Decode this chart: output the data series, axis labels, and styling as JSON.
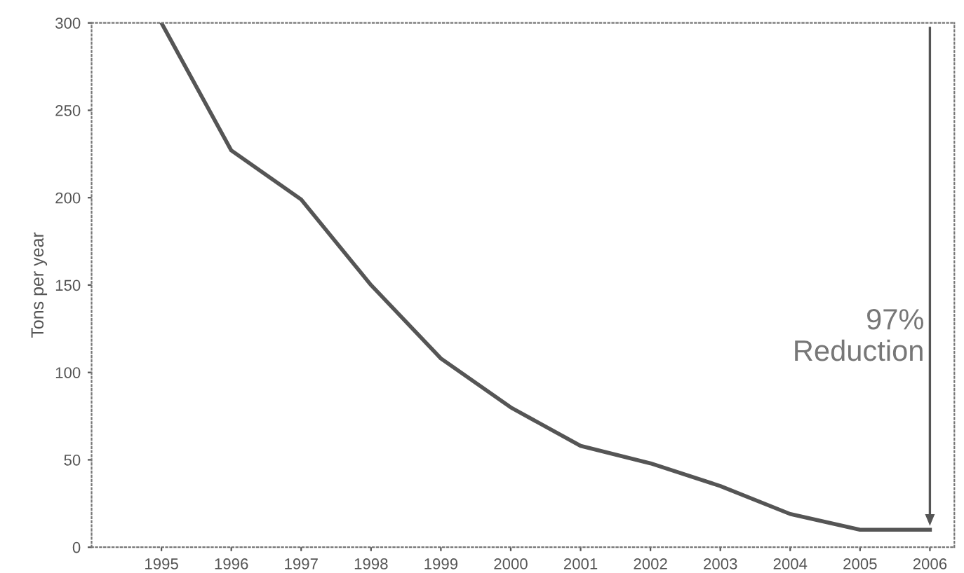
{
  "chart_data": {
    "type": "line",
    "ylabel": "Tons per year",
    "categories": [
      "1995",
      "1996",
      "1997",
      "1998",
      "1999",
      "2000",
      "2001",
      "2002",
      "2003",
      "2004",
      "2005",
      "2006"
    ],
    "series": [
      {
        "color": "#555555",
        "values": [
          300,
          227,
          199,
          150,
          108,
          80,
          58,
          48,
          35,
          19,
          10,
          10
        ]
      }
    ],
    "ylim": [
      0,
      300
    ],
    "yticks": [
      0,
      50,
      100,
      150,
      200,
      250,
      300
    ],
    "grid": false,
    "legend": false,
    "marker": "none",
    "line_style": "solid",
    "annotations": [
      "97%\nReduction"
    ]
  }
}
